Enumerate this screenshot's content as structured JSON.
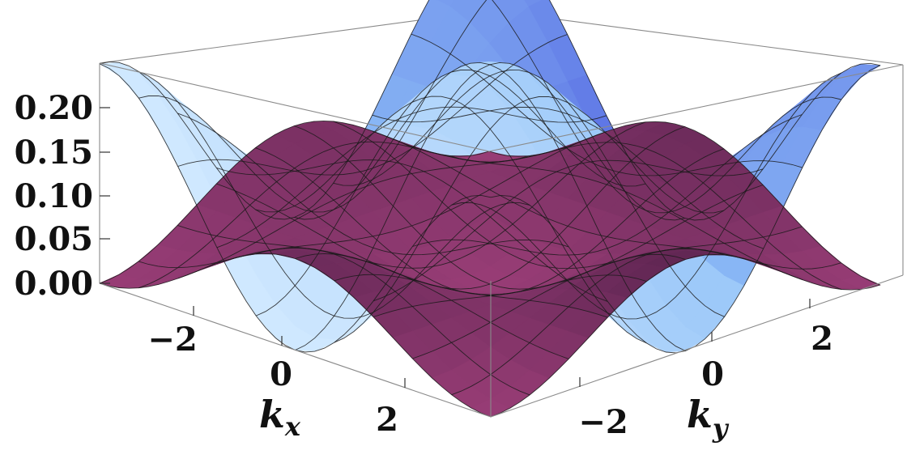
{
  "chart_data": {
    "type": "surface3d",
    "surfaces": [
      {
        "name": "",
        "description": "upper band, maximum at kx=0,ky=0 and at corners, minima at edge midpoints",
        "values": {
          "k": [
            -3.14,
            -2.36,
            -1.57,
            -0.79,
            0.0,
            0.79,
            1.57,
            2.36,
            3.14
          ],
          "z_grid": [
            [
              0.24,
              0.21,
              0.13,
              0.06,
              0.03,
              0.06,
              0.13,
              0.21,
              0.24
            ],
            [
              0.21,
              0.18,
              0.12,
              0.07,
              0.06,
              0.07,
              0.12,
              0.18,
              0.21
            ],
            [
              0.13,
              0.12,
              0.09,
              0.09,
              0.1,
              0.09,
              0.09,
              0.12,
              0.13
            ],
            [
              0.06,
              0.07,
              0.09,
              0.12,
              0.15,
              0.12,
              0.09,
              0.07,
              0.06
            ],
            [
              0.03,
              0.06,
              0.1,
              0.15,
              0.24,
              0.15,
              0.1,
              0.06,
              0.03
            ],
            [
              0.06,
              0.07,
              0.09,
              0.12,
              0.15,
              0.12,
              0.09,
              0.07,
              0.06
            ],
            [
              0.13,
              0.12,
              0.09,
              0.09,
              0.1,
              0.09,
              0.09,
              0.12,
              0.13
            ],
            [
              0.21,
              0.18,
              0.12,
              0.07,
              0.06,
              0.07,
              0.12,
              0.18,
              0.21
            ],
            [
              0.24,
              0.21,
              0.13,
              0.06,
              0.03,
              0.06,
              0.13,
              0.21,
              0.24
            ]
          ]
        },
        "color": "#8fc6ff"
      },
      {
        "name": "",
        "description": "lower band, zero at corners, bump at center touching upper band at edge midpoints",
        "values": {
          "z_center": 0.1,
          "z_corner": 0.0,
          "z_edge_mid": 0.03
        },
        "color": "#8a2d6a"
      }
    ],
    "xlabel": "k_x",
    "ylabel": "k_y",
    "zlabel": "",
    "x_ticks": [
      "−2",
      "0",
      "2"
    ],
    "y_ticks": [
      "−2",
      "0",
      "2"
    ],
    "z_ticks": [
      "0.00",
      "0.05",
      "0.10",
      "0.15",
      "0.20"
    ],
    "xlim": [
      -3.14159,
      3.14159
    ],
    "ylim": [
      -3.14159,
      3.14159
    ],
    "zlim": [
      0,
      0.24
    ],
    "box": true,
    "mesh": "10x10"
  },
  "colors": {
    "upper_light": "#cfe8ff",
    "upper_mid": "#8fc0f7",
    "upper_dark": "#4f5fe0",
    "lower_light": "#b84a8a",
    "lower_dark": "#4a1d45",
    "mesh_line": "#1a1a1a"
  }
}
